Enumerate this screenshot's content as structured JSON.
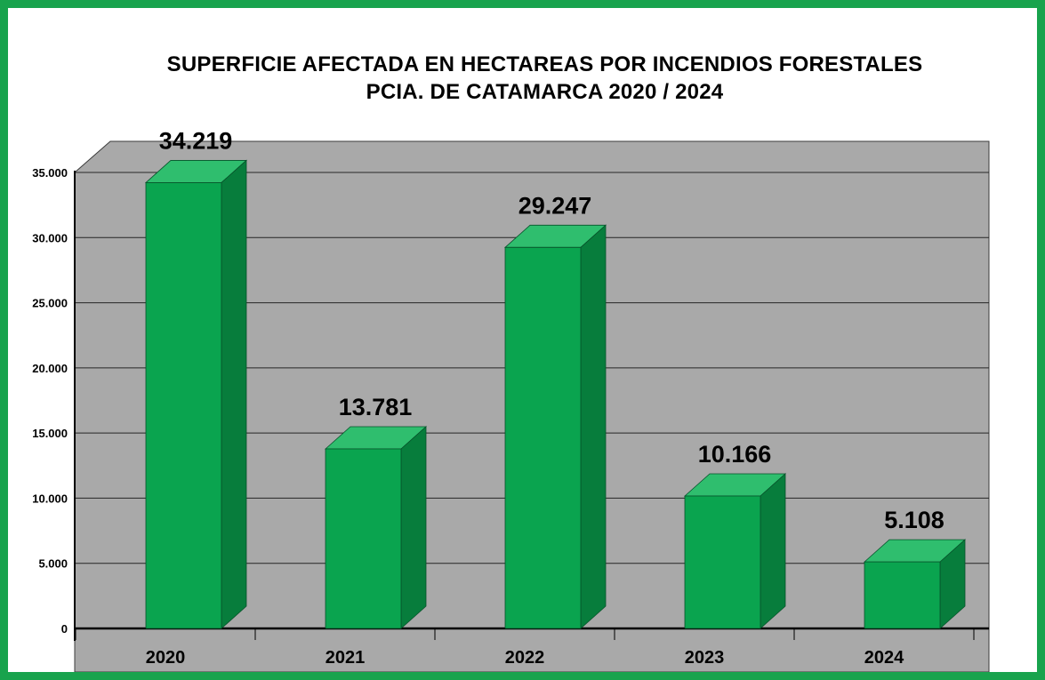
{
  "title": {
    "line1": "SUPERFICIE AFECTADA EN HECTAREAS POR INCENDIOS FORESTALES",
    "line2": "PCIA. DE CATAMARCA 2020 / 2024"
  },
  "chart_data": {
    "type": "bar",
    "style": "3d-column",
    "title": "SUPERFICIE AFECTADA EN HECTAREAS POR INCENDIOS FORESTALES PCIA. DE CATAMARCA 2020 / 2024",
    "categories": [
      "2020",
      "2021",
      "2022",
      "2023",
      "2024"
    ],
    "values": [
      34219,
      13781,
      29247,
      10166,
      5108
    ],
    "value_labels": [
      "34.219",
      "13.781",
      "29.247",
      "10.166",
      "5.108"
    ],
    "y_ticks": [
      {
        "label": "35.000",
        "value": 35000
      },
      {
        "label": "30.000",
        "value": 30000
      },
      {
        "label": "25.000",
        "value": 25000
      },
      {
        "label": "20.000",
        "value": 20000
      },
      {
        "label": "15.000",
        "value": 15000
      },
      {
        "label": "10.000",
        "value": 10000
      },
      {
        "label": "5.000",
        "value": 5000
      },
      {
        "label": "0",
        "value": 0
      }
    ],
    "ylim": [
      0,
      35000
    ],
    "xlabel": "",
    "ylabel": "",
    "grid": true,
    "legend": false
  },
  "colors": {
    "frame_border": "#18a34d",
    "bar_front": "#0aa44f",
    "bar_top": "#2fbe6e",
    "bar_side": "#077d3c",
    "bar_outline": "#06522a",
    "wall": "#a9a9a9",
    "wall_outline": "#3c3c3c",
    "gridline": "#262626",
    "axis": "#000000",
    "text": "#000000",
    "background": "#ffffff"
  }
}
